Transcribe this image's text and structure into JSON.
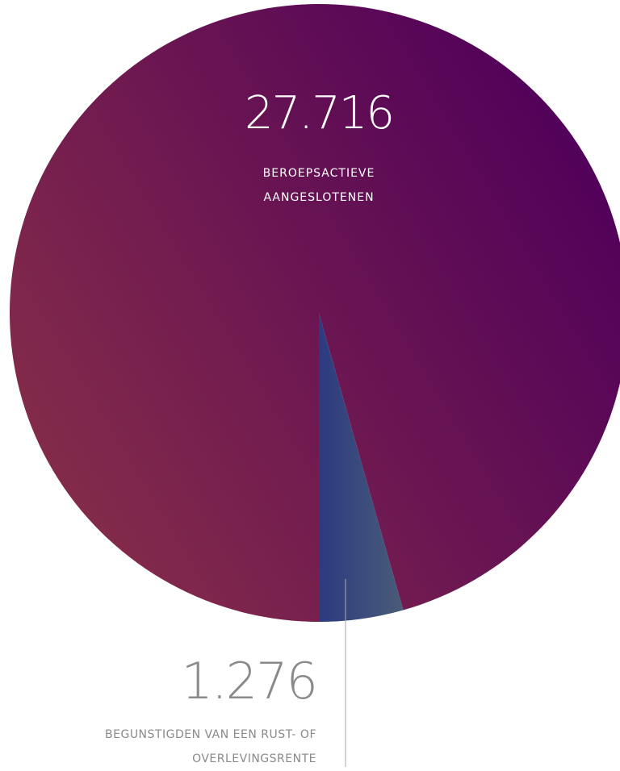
{
  "chart_data": {
    "type": "pie",
    "categories": [
      "BEROEPSACTIEVE AANGESLOTENEN",
      "BEGUNSTIGDEN VAN EEN RUST- OF OVERLEVINGSRENTE"
    ],
    "values": [
      27716,
      1276
    ],
    "value_labels": [
      "27.716",
      "1.276"
    ],
    "colors": [
      [
        "#50005a",
        "#8a3048"
      ],
      [
        "#2c3a80",
        "#4a5c78"
      ]
    ]
  }
}
